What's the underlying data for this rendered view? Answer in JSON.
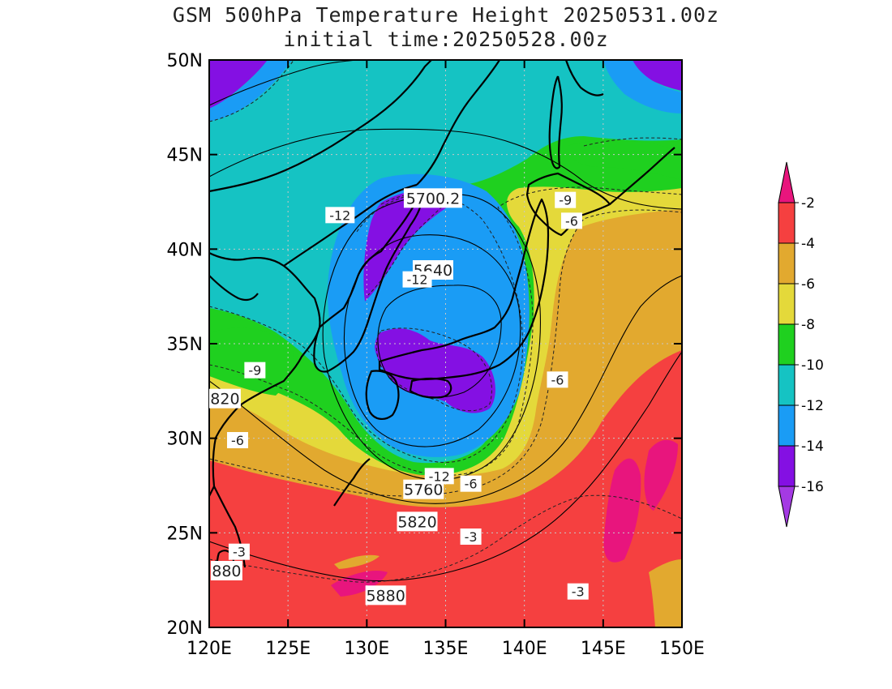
{
  "title": {
    "line1": "GSM 500hPa Temperature Height 20250531.00z",
    "line2": "initial time:20250528.00z"
  },
  "map": {
    "lon_range": [
      120,
      150
    ],
    "lat_range": [
      20,
      50
    ],
    "lat_labels": [
      "50N",
      "45N",
      "40N",
      "35N",
      "30N",
      "25N",
      "20N"
    ],
    "lon_labels": [
      "120E",
      "125E",
      "130E",
      "135E",
      "140E",
      "145E",
      "150E"
    ],
    "grid": "dotted",
    "height_labels": [
      {
        "text": "5700.2",
        "lon": 134.2,
        "lat": 42.7
      },
      {
        "text": "5640",
        "lon": 134.2,
        "lat": 38.9
      },
      {
        "text": "5760",
        "lon": 133.6,
        "lat": 27.3
      },
      {
        "text": "5820",
        "lon": 133.2,
        "lat": 25.6
      },
      {
        "text": "5880",
        "lon": 131.2,
        "lat": 21.7
      },
      {
        "text": "820",
        "lon": 121.0,
        "lat": 32.1
      },
      {
        "text": "880",
        "lon": 121.1,
        "lat": 23.0
      }
    ],
    "temp_labels": [
      {
        "text": "-12",
        "lon": 128.3,
        "lat": 41.8
      },
      {
        "text": "-12",
        "lon": 133.2,
        "lat": 38.4
      },
      {
        "text": "-9",
        "lon": 122.9,
        "lat": 33.6
      },
      {
        "text": "-6",
        "lon": 121.8,
        "lat": 29.9
      },
      {
        "text": "-12",
        "lon": 134.6,
        "lat": 28.0
      },
      {
        "text": "-6",
        "lon": 136.6,
        "lat": 27.6
      },
      {
        "text": "-9",
        "lon": 142.6,
        "lat": 42.6
      },
      {
        "text": "-6",
        "lon": 143.0,
        "lat": 41.5
      },
      {
        "text": "-6",
        "lon": 142.1,
        "lat": 33.1
      },
      {
        "text": "-3",
        "lon": 121.9,
        "lat": 24.0
      },
      {
        "text": "-3",
        "lon": 136.6,
        "lat": 24.8
      },
      {
        "text": "-3",
        "lon": 143.4,
        "lat": 21.9
      }
    ]
  },
  "colorbar": {
    "labels": [
      "-2",
      "-4",
      "-6",
      "-8",
      "-10",
      "-12",
      "-14",
      "-16"
    ],
    "colors": [
      "#e8157d",
      "#f54040",
      "#e2a92f",
      "#e4d93a",
      "#1fd01f",
      "#15c3c3",
      "#1a9cf5",
      "#8410e3",
      "#a43ae3"
    ]
  },
  "colors": {
    "warm_red": "#f54040",
    "orange": "#e2a92f",
    "yellow": "#e4d93a",
    "green": "#1fd01f",
    "cyan": "#15c3c3",
    "blue": "#1a9cf5",
    "purple": "#8410e3",
    "magenta": "#e8157d"
  }
}
